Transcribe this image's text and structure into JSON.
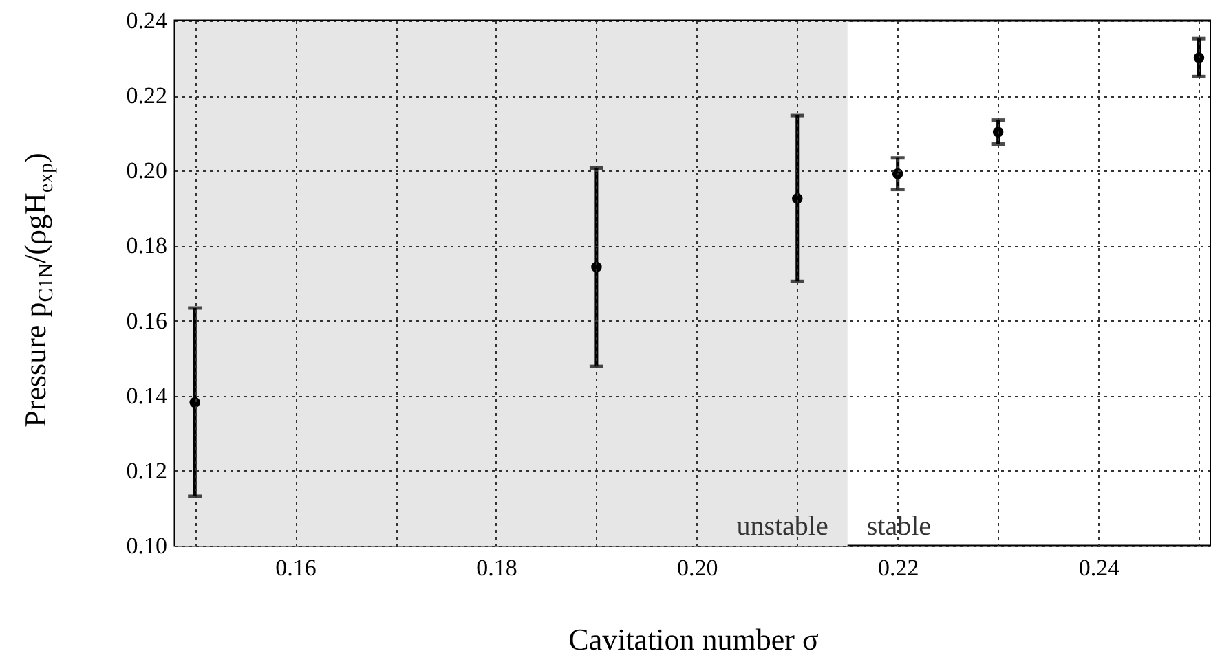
{
  "chart_data": {
    "type": "scatter",
    "xlabel": "Cavitation number σ",
    "ylabel": "Pressure p$_{C1N}$/(ρgH$_{exp}$)",
    "x": [
      0.15,
      0.19,
      0.21,
      0.22,
      0.23,
      0.25
    ],
    "values": [
      0.1382,
      0.1743,
      0.1926,
      0.1992,
      0.2103,
      0.2301
    ],
    "errors": [
      [
        0.1132,
        0.1634
      ],
      [
        0.1478,
        0.2007
      ],
      [
        0.1705,
        0.2147
      ],
      [
        0.195,
        0.2034
      ],
      [
        0.2071,
        0.2135
      ],
      [
        0.2251,
        0.2352
      ]
    ],
    "color": "#000000",
    "marker": "circle",
    "xlim": [
      0.148,
      0.2512
    ],
    "xticks": [
      {
        "value": 0.15,
        "label": null
      },
      0.16,
      {
        "value": 0.17,
        "label": null
      },
      0.18,
      {
        "value": 0.19,
        "label": null
      },
      "0.20",
      {
        "value": 0.21,
        "label": null
      },
      0.22,
      {
        "value": 0.23,
        "label": null
      },
      0.24,
      {
        "value": 0.25,
        "label": null
      }
    ],
    "ylim": [
      0.1,
      0.24
    ],
    "yticks": [
      {
        "value": 0.1,
        "label": "0.10"
      },
      0.12,
      0.14,
      0.16,
      0.18,
      {
        "value": 0.2,
        "label": "0.20"
      },
      0.22,
      0.24
    ],
    "grid": true,
    "bands": [
      {
        "axis": "x",
        "from": 0.148,
        "to": 0.215,
        "label": "unstable",
        "color": "#e6e6e6"
      }
    ],
    "annotations": [
      "stable"
    ]
  }
}
